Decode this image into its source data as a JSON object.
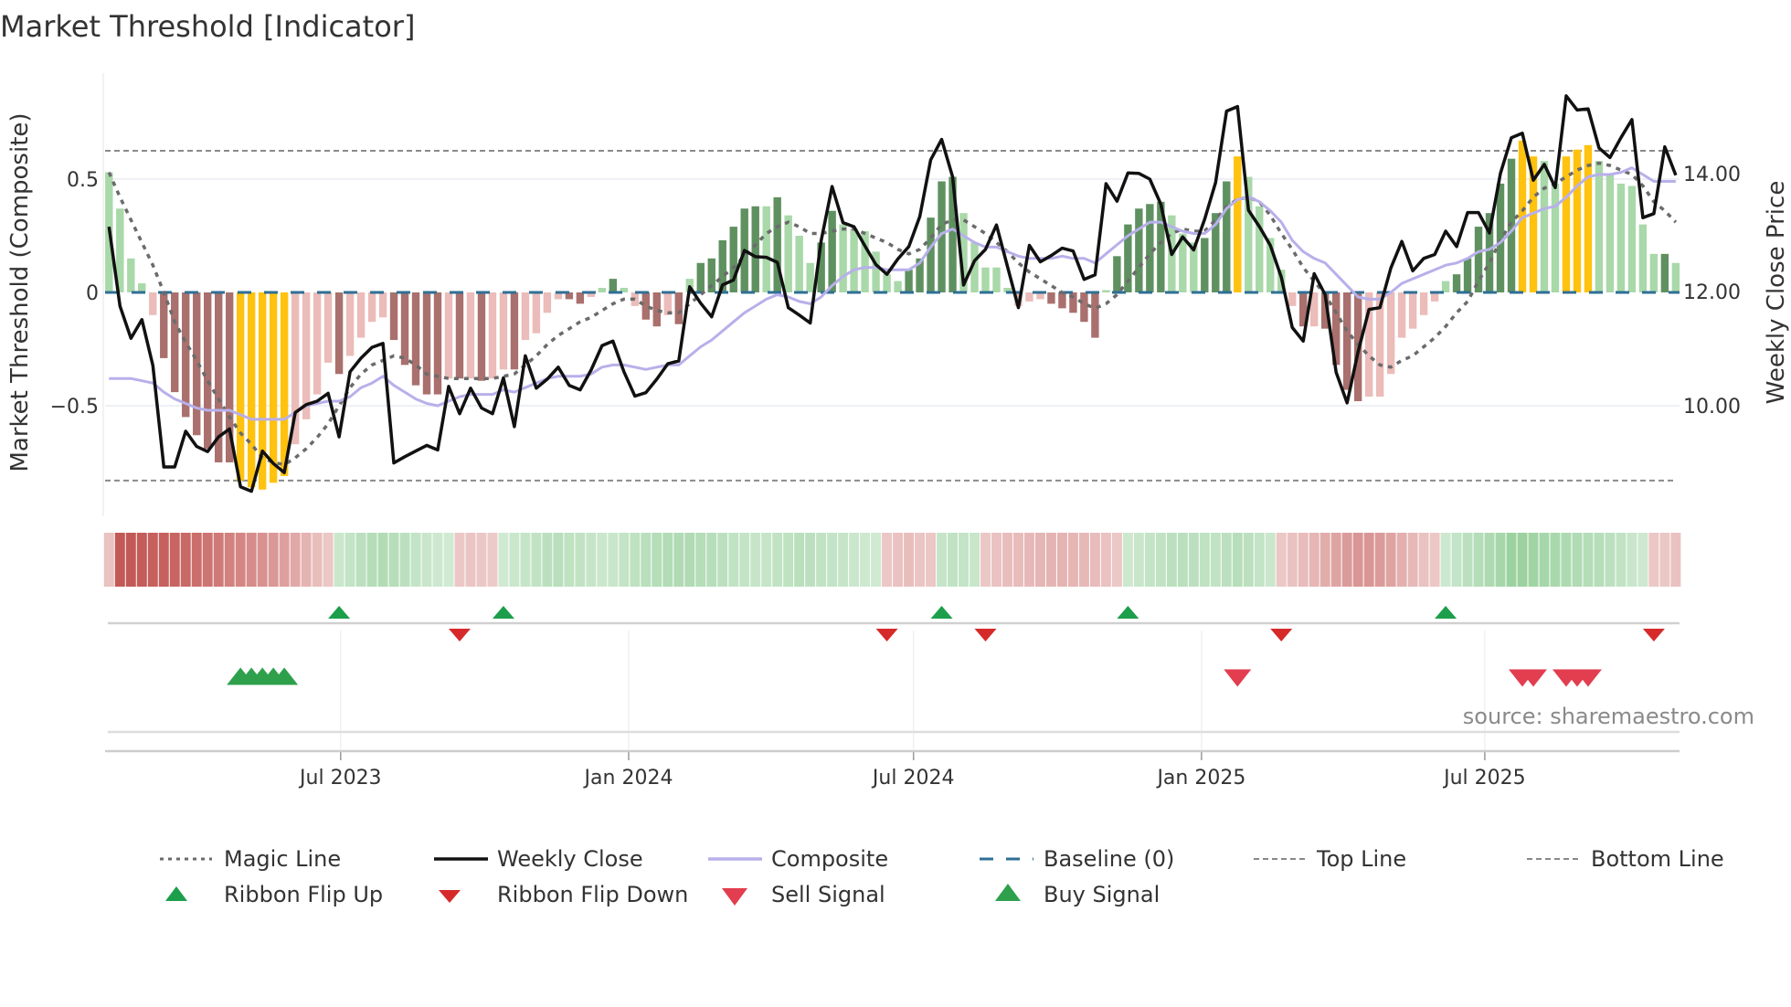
{
  "chart_data": {
    "type": "bar+line",
    "title": "Market Threshold [Indicator]",
    "ylabel_left": "Market Threshold (Composite)",
    "ylabel_right": "Weekly Close Price",
    "source": "source: sharemaestro.com",
    "x_start": "2023-02-03",
    "x_step_days": 7,
    "ylim_left": [
      -0.95,
      0.98
    ],
    "yticks_left": [
      {
        "value": 0.5,
        "label": "0.5"
      },
      {
        "value": 0,
        "label": "0"
      },
      {
        "value": -0.5,
        "label": "−0.5"
      }
    ],
    "yticks_right": [
      {
        "value": 14,
        "label": "14.00"
      },
      {
        "value": 12,
        "label": "12.00"
      },
      {
        "value": 10,
        "label": "10.00"
      }
    ],
    "xticks": [
      {
        "date": "2023-07-01",
        "label": "Jul 2023"
      },
      {
        "date": "2024-01-01",
        "label": "Jan 2024"
      },
      {
        "date": "2024-07-01",
        "label": "Jul 2024"
      },
      {
        "date": "2025-01-01",
        "label": "Jan 2025"
      },
      {
        "date": "2025-07-01",
        "label": "Jul 2025"
      }
    ],
    "top_line": 0.625,
    "bottom_line": -0.83,
    "baseline": 0,
    "colors": {
      "g": "#a9d8a9",
      "G": "#5f9160",
      "r": "#ebbcb9",
      "R": "#a9706d",
      "Y": "#ffc20e",
      "close": "#111111",
      "composite": "#b8b0ea",
      "magic": "#6b6b6b",
      "baseline": "#2f6f96",
      "ribbon_red": "192,80,77",
      "ribbon_green": "112,190,118",
      "flip_up": "#1c9e4b",
      "flip_down": "#d62a2a",
      "buy": "#2ea04c",
      "sell": "#e23e4f"
    },
    "bars": [
      0.53,
      0.37,
      0.15,
      0.04,
      -0.1,
      -0.29,
      -0.44,
      -0.55,
      -0.63,
      -0.69,
      -0.75,
      -0.75,
      -0.83,
      -0.86,
      -0.87,
      -0.84,
      -0.81,
      -0.67,
      -0.56,
      -0.45,
      -0.31,
      -0.36,
      -0.28,
      -0.2,
      -0.13,
      -0.11,
      -0.21,
      -0.32,
      -0.41,
      -0.45,
      -0.45,
      -0.38,
      -0.38,
      -0.38,
      -0.39,
      -0.38,
      -0.34,
      -0.34,
      -0.21,
      -0.18,
      -0.09,
      -0.03,
      -0.03,
      -0.05,
      -0.02,
      0.02,
      0.06,
      0.02,
      -0.06,
      -0.12,
      -0.15,
      -0.1,
      -0.14,
      0.06,
      0.13,
      0.15,
      0.23,
      0.29,
      0.37,
      0.38,
      0.38,
      0.42,
      0.34,
      0.25,
      0.13,
      0.22,
      0.36,
      0.3,
      0.28,
      0.27,
      0.18,
      0.08,
      0.05,
      0.1,
      0.15,
      0.33,
      0.49,
      0.51,
      0.35,
      0.22,
      0.11,
      0.11,
      0.02,
      -0.06,
      -0.04,
      -0.03,
      -0.05,
      -0.07,
      -0.09,
      -0.13,
      -0.2,
      0.01,
      0.16,
      0.3,
      0.37,
      0.39,
      0.4,
      0.34,
      0.26,
      0.22,
      0.24,
      0.35,
      0.49,
      0.6,
      0.51,
      0.38,
      0.24,
      0.1,
      -0.06,
      -0.15,
      -0.15,
      -0.16,
      -0.32,
      -0.43,
      -0.48,
      -0.46,
      -0.46,
      -0.36,
      -0.2,
      -0.16,
      -0.1,
      -0.04,
      0.05,
      0.08,
      0.15,
      0.29,
      0.35,
      0.48,
      0.59,
      0.67,
      0.6,
      0.58,
      0.48,
      0.6,
      0.63,
      0.65,
      0.58,
      0.52,
      0.48,
      0.47,
      0.3,
      0.17,
      0.17,
      0.13
    ],
    "bar_colors": "ggggrRRRRRRRYYYYYrrrrRrrrrRRRRRrRrRrrRrrrrRRrgGgrRRrRgGGGGGGgGgggGGggggggGGGGGgggggrrrRRRRRgGGGGGgggGGGYggggrRrRRRRrrrrrrrgGGGGGGYYggYYYggggggGg",
    "weekly_close": [
      13.16,
      11.76,
      11.19,
      11.52,
      10.71,
      8.92,
      8.92,
      9.55,
      9.28,
      9.19,
      9.45,
      9.59,
      8.57,
      8.49,
      9.2,
      8.98,
      8.82,
      9.88,
      10.02,
      10.08,
      10.22,
      9.45,
      10.6,
      10.84,
      11.03,
      11.1,
      8.99,
      9.1,
      9.2,
      9.3,
      9.22,
      10.34,
      9.86,
      10.31,
      9.96,
      9.86,
      10.49,
      9.63,
      10.88,
      10.31,
      10.47,
      10.68,
      10.36,
      10.28,
      10.63,
      11.06,
      11.14,
      10.6,
      10.17,
      10.23,
      10.47,
      10.74,
      10.79,
      12.1,
      11.81,
      11.57,
      12.13,
      12.22,
      12.74,
      12.63,
      12.62,
      12.53,
      11.73,
      11.6,
      11.46,
      12.91,
      13.87,
      13.23,
      13.16,
      12.82,
      12.49,
      12.32,
      12.59,
      12.81,
      13.34,
      14.34,
      14.7,
      14.04,
      12.13,
      12.56,
      12.76,
      13.19,
      12.46,
      11.73,
      12.83,
      12.54,
      12.65,
      12.78,
      12.73,
      12.23,
      12.31,
      13.92,
      13.61,
      14.11,
      14.1,
      14.0,
      13.56,
      12.67,
      12.98,
      12.75,
      13.29,
      13.94,
      15.2,
      15.28,
      13.45,
      13.16,
      12.83,
      12.27,
      11.38,
      11.14,
      12.33,
      11.96,
      10.59,
      10.05,
      10.95,
      11.7,
      11.73,
      12.43,
      12.9,
      12.38,
      12.6,
      12.67,
      13.08,
      12.81,
      13.41,
      13.41,
      13.05,
      14.1,
      14.73,
      14.81,
      13.98,
      14.26,
      13.85,
      15.47,
      15.22,
      15.24,
      14.55,
      14.38,
      14.73,
      15.05,
      13.32,
      13.39,
      14.57,
      14.07
    ],
    "composite": [
      -0.38,
      -0.38,
      -0.38,
      -0.39,
      -0.4,
      -0.44,
      -0.47,
      -0.49,
      -0.51,
      -0.52,
      -0.52,
      -0.52,
      -0.54,
      -0.56,
      -0.56,
      -0.56,
      -0.56,
      -0.53,
      -0.5,
      -0.49,
      -0.48,
      -0.48,
      -0.46,
      -0.42,
      -0.4,
      -0.37,
      -0.41,
      -0.44,
      -0.47,
      -0.49,
      -0.5,
      -0.48,
      -0.46,
      -0.45,
      -0.45,
      -0.45,
      -0.43,
      -0.44,
      -0.42,
      -0.4,
      -0.38,
      -0.37,
      -0.37,
      -0.37,
      -0.36,
      -0.33,
      -0.32,
      -0.32,
      -0.33,
      -0.34,
      -0.33,
      -0.32,
      -0.32,
      -0.28,
      -0.24,
      -0.21,
      -0.17,
      -0.13,
      -0.09,
      -0.06,
      -0.03,
      -0.01,
      -0.02,
      -0.04,
      -0.05,
      -0.02,
      0.03,
      0.07,
      0.1,
      0.11,
      0.11,
      0.1,
      0.1,
      0.1,
      0.13,
      0.2,
      0.26,
      0.28,
      0.25,
      0.22,
      0.2,
      0.2,
      0.18,
      0.16,
      0.15,
      0.15,
      0.15,
      0.16,
      0.15,
      0.15,
      0.13,
      0.17,
      0.21,
      0.25,
      0.28,
      0.31,
      0.31,
      0.29,
      0.27,
      0.26,
      0.26,
      0.3,
      0.37,
      0.41,
      0.42,
      0.4,
      0.36,
      0.31,
      0.23,
      0.18,
      0.15,
      0.13,
      0.08,
      0.03,
      -0.02,
      -0.03,
      -0.03,
      0.0,
      0.04,
      0.06,
      0.08,
      0.1,
      0.12,
      0.13,
      0.15,
      0.18,
      0.19,
      0.22,
      0.27,
      0.33,
      0.35,
      0.37,
      0.38,
      0.42,
      0.47,
      0.51,
      0.52,
      0.52,
      0.53,
      0.55,
      0.52,
      0.49,
      0.49,
      0.49
    ],
    "magic_line": [
      0.53,
      0.42,
      0.32,
      0.22,
      0.12,
      0.0,
      -0.13,
      -0.22,
      -0.3,
      -0.39,
      -0.47,
      -0.55,
      -0.62,
      -0.67,
      -0.73,
      -0.75,
      -0.76,
      -0.73,
      -0.69,
      -0.64,
      -0.58,
      -0.5,
      -0.42,
      -0.36,
      -0.32,
      -0.3,
      -0.28,
      -0.29,
      -0.32,
      -0.36,
      -0.37,
      -0.38,
      -0.38,
      -0.38,
      -0.38,
      -0.38,
      -0.37,
      -0.36,
      -0.32,
      -0.28,
      -0.23,
      -0.19,
      -0.16,
      -0.13,
      -0.11,
      -0.08,
      -0.05,
      -0.03,
      -0.03,
      -0.06,
      -0.08,
      -0.09,
      -0.09,
      -0.05,
      -0.01,
      0.03,
      0.07,
      0.11,
      0.16,
      0.21,
      0.26,
      0.29,
      0.31,
      0.29,
      0.26,
      0.26,
      0.27,
      0.28,
      0.28,
      0.26,
      0.24,
      0.22,
      0.19,
      0.17,
      0.19,
      0.24,
      0.3,
      0.32,
      0.32,
      0.29,
      0.26,
      0.22,
      0.18,
      0.13,
      0.09,
      0.06,
      0.03,
      0.0,
      -0.02,
      -0.05,
      -0.07,
      -0.05,
      -0.01,
      0.05,
      0.11,
      0.17,
      0.22,
      0.26,
      0.28,
      0.27,
      0.27,
      0.32,
      0.38,
      0.41,
      0.42,
      0.4,
      0.34,
      0.26,
      0.19,
      0.11,
      0.05,
      -0.01,
      -0.09,
      -0.17,
      -0.23,
      -0.28,
      -0.32,
      -0.33,
      -0.3,
      -0.28,
      -0.24,
      -0.2,
      -0.15,
      -0.09,
      -0.04,
      0.05,
      0.13,
      0.23,
      0.31,
      0.36,
      0.42,
      0.46,
      0.48,
      0.51,
      0.54,
      0.56,
      0.57,
      0.56,
      0.54,
      0.52,
      0.47,
      0.4,
      0.36,
      0.31
    ],
    "ribbon": [
      -0.2,
      -0.9,
      -0.9,
      -0.88,
      -0.86,
      -0.85,
      -0.82,
      -0.8,
      -0.76,
      -0.72,
      -0.68,
      -0.64,
      -0.6,
      -0.56,
      -0.52,
      -0.48,
      -0.42,
      -0.36,
      -0.3,
      -0.22,
      -0.16,
      0.22,
      0.28,
      0.34,
      0.4,
      0.42,
      0.38,
      0.34,
      0.28,
      0.24,
      0.2,
      0.18,
      -0.16,
      -0.18,
      -0.16,
      -0.14,
      0.18,
      0.22,
      0.26,
      0.3,
      0.34,
      0.36,
      0.32,
      0.3,
      0.26,
      0.22,
      0.24,
      0.28,
      0.32,
      0.36,
      0.4,
      0.42,
      0.44,
      0.44,
      0.4,
      0.38,
      0.34,
      0.3,
      0.28,
      0.26,
      0.26,
      0.3,
      0.32,
      0.36,
      0.34,
      0.3,
      0.28,
      0.26,
      0.22,
      0.2,
      0.18,
      -0.16,
      -0.2,
      -0.22,
      -0.18,
      -0.16,
      0.26,
      0.3,
      0.28,
      0.24,
      -0.16,
      -0.2,
      -0.22,
      -0.24,
      -0.26,
      -0.28,
      -0.3,
      -0.3,
      -0.28,
      -0.26,
      -0.24,
      -0.2,
      -0.16,
      0.2,
      0.24,
      0.28,
      0.3,
      0.34,
      0.36,
      0.34,
      0.32,
      0.3,
      0.34,
      0.38,
      0.34,
      0.28,
      0.22,
      -0.16,
      -0.2,
      -0.24,
      -0.28,
      -0.34,
      -0.4,
      -0.46,
      -0.5,
      -0.5,
      -0.46,
      -0.4,
      -0.32,
      -0.26,
      -0.2,
      -0.16,
      0.2,
      0.28,
      0.34,
      0.4,
      0.46,
      0.52,
      0.6,
      0.6,
      0.56,
      0.52,
      0.5,
      0.46,
      0.44,
      0.4,
      0.38,
      0.34,
      0.3,
      0.24,
      0.2,
      -0.16,
      -0.16,
      -0.2
    ],
    "signals": {
      "ribbon_flip_up": [
        22,
        37,
        77,
        94,
        123
      ],
      "ribbon_flip_down": [
        33,
        72,
        81,
        108,
        142
      ],
      "buy": [
        13,
        14,
        15,
        16,
        17
      ],
      "sell": [
        104,
        130,
        131,
        134,
        135,
        136
      ]
    },
    "legend": [
      {
        "key": "magic",
        "label": "Magic Line"
      },
      {
        "key": "close",
        "label": "Weekly Close"
      },
      {
        "key": "composite",
        "label": "Composite"
      },
      {
        "key": "baseline",
        "label": "Baseline (0)"
      },
      {
        "key": "top",
        "label": "Top Line"
      },
      {
        "key": "bottom",
        "label": "Bottom Line"
      },
      {
        "key": "flip_up",
        "label": "Ribbon Flip Up"
      },
      {
        "key": "flip_down",
        "label": "Ribbon Flip Down"
      },
      {
        "key": "sell",
        "label": "Sell Signal"
      },
      {
        "key": "buy",
        "label": "Buy Signal"
      }
    ]
  }
}
